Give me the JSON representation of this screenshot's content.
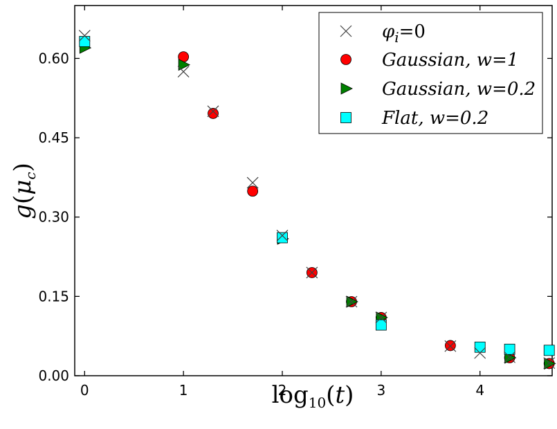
{
  "chart_data": {
    "type": "scatter",
    "xlabel": "log10(t)",
    "ylabel": "g(μc)",
    "xlim": [
      -0.1,
      4.73
    ],
    "ylim": [
      0.0,
      0.7
    ],
    "x_ticks": [
      "0",
      "1",
      "2",
      "3",
      "4"
    ],
    "y_ticks": [
      "0.00",
      "0.15",
      "0.30",
      "0.45",
      "0.60"
    ],
    "legend_position": "top-right",
    "series": [
      {
        "name": "φi=0",
        "legend": {
          "symbol": "φ",
          "sub": "i",
          "rest": "=0"
        },
        "marker": "x",
        "color": "#404040",
        "x": [
          0,
          1,
          1.3,
          1.7,
          2,
          2.3,
          2.7,
          3,
          3.7,
          4,
          4.3,
          4.7
        ],
        "y": [
          0.643,
          0.575,
          0.5,
          0.365,
          0.265,
          0.195,
          0.14,
          0.11,
          0.056,
          0.043,
          0.035,
          0.024
        ]
      },
      {
        "name": "Gaussian, w=1",
        "legend": {
          "word": "Gaussian",
          "rest": ", w=1"
        },
        "marker": "circle",
        "color": "#ff0000",
        "x": [
          1,
          1.3,
          1.7,
          2.3,
          2.7,
          3,
          3.7,
          4.3,
          4.7
        ],
        "y": [
          0.603,
          0.496,
          0.349,
          0.195,
          0.14,
          0.11,
          0.057,
          0.034,
          0.023
        ]
      },
      {
        "name": "Gaussian, w=0.2",
        "legend": {
          "word": "Gaussian",
          "rest": ", w=0.2"
        },
        "marker": "triangle-right",
        "color": "#008000",
        "x": [
          0,
          1,
          2,
          2.7,
          3,
          4.3,
          4.7
        ],
        "y": [
          0.62,
          0.588,
          0.259,
          0.14,
          0.11,
          0.034,
          0.023
        ]
      },
      {
        "name": "Flat, w=0.2",
        "legend": {
          "word": "Flat",
          "rest": ", w=0.2"
        },
        "marker": "square",
        "color": "#00ffff",
        "x": [
          0,
          2,
          3,
          4,
          4.3,
          4.7
        ],
        "y": [
          0.632,
          0.261,
          0.096,
          0.054,
          0.05,
          0.048
        ]
      }
    ]
  }
}
